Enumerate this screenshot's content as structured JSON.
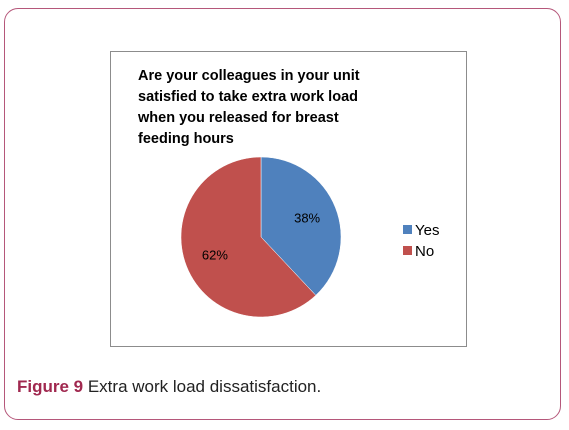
{
  "figure": {
    "number_label": "Figure 9",
    "caption_text": " Extra work load dissatisfaction."
  },
  "chart_data": {
    "type": "pie",
    "title": "Are your colleagues in your unit\nsatisfied to take extra work load\nwhen you released for breast\nfeeding hours",
    "categories": [
      "Yes",
      "No"
    ],
    "values": [
      38,
      62
    ],
    "value_labels": [
      "38%",
      "62%"
    ],
    "colors": [
      "#4f81bd",
      "#c0504d"
    ],
    "legend_position": "right",
    "start_angle": "top, clockwise"
  }
}
